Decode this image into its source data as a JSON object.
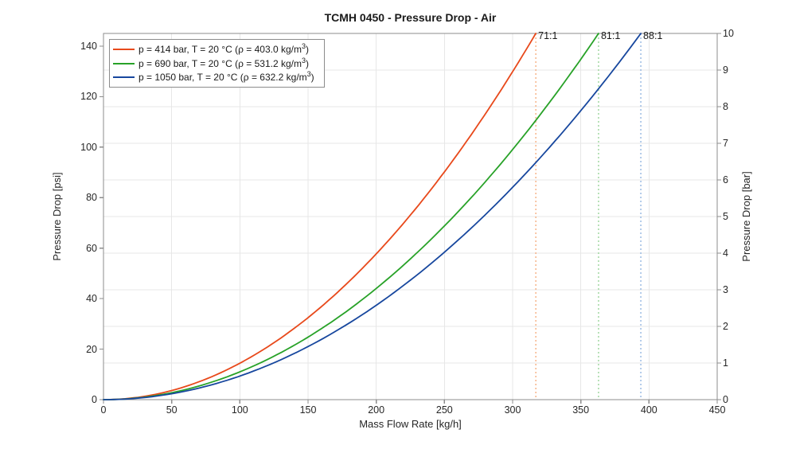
{
  "colors": {
    "axis": "#8c8c8c",
    "grid": "#e7e7e7",
    "tick_label": "#262626",
    "background": "#ffffff"
  },
  "chart_data": {
    "type": "line",
    "title": "TCMH 0450 - Pressure Drop - Air",
    "xlabel": "Mass Flow Rate [kg/h]",
    "ylabel_left": "Pressure Drop [psi]",
    "ylabel_right": "Pressure Drop [bar]",
    "x_range": [
      0,
      450
    ],
    "y_left_range_psi": [
      0,
      145.04
    ],
    "y_right_range_bar": [
      0,
      10
    ],
    "x_ticks": [
      0,
      50,
      100,
      150,
      200,
      250,
      300,
      350,
      400,
      450
    ],
    "y_left_ticks": [
      0,
      20,
      40,
      60,
      80,
      100,
      120,
      140
    ],
    "y_right_ticks": [
      0,
      1,
      2,
      3,
      4,
      5,
      6,
      7,
      8,
      9,
      10
    ],
    "grid": true,
    "legend_position": "top-left",
    "curve_model": "dp_bar = dp_max_bar * (m / m_max_kgh)^2",
    "curve_exponent": 2,
    "series": [
      {
        "name": "p = 414 bar, T = 20 °C (ρ = 403.0 kg/m³)",
        "legend_pre": "p = 414 bar, T = 20 °C (ρ = 403.0 kg/m",
        "legend_sup": "3",
        "legend_post": ")",
        "pressure_bar": 414,
        "temperature_c": 20,
        "rho_kg_m3": 403.0,
        "color": "#E8491B",
        "guide_color": "#F5A878",
        "m_max_kgh": 317,
        "dp_max_bar": 10,
        "ratio_label": "71:1",
        "points_kgh_bar": [
          [
            0,
            0
          ],
          [
            50,
            0.25
          ],
          [
            100,
            1.0
          ],
          [
            150,
            2.24
          ],
          [
            200,
            3.98
          ],
          [
            250,
            6.22
          ],
          [
            300,
            8.96
          ],
          [
            317,
            10
          ]
        ]
      },
      {
        "name": "p = 690 bar, T = 20 °C (ρ = 531.2 kg/m³)",
        "legend_pre": "p = 690 bar, T = 20 °C (ρ = 531.2 kg/m",
        "legend_sup": "3",
        "legend_post": ")",
        "pressure_bar": 690,
        "temperature_c": 20,
        "rho_kg_m3": 531.2,
        "color": "#28A228",
        "guide_color": "#93D293",
        "m_max_kgh": 363,
        "dp_max_bar": 10,
        "ratio_label": "81:1",
        "points_kgh_bar": [
          [
            0,
            0
          ],
          [
            50,
            0.19
          ],
          [
            100,
            0.76
          ],
          [
            150,
            1.71
          ],
          [
            200,
            3.03
          ],
          [
            250,
            4.74
          ],
          [
            300,
            6.83
          ],
          [
            350,
            9.3
          ],
          [
            363,
            10
          ]
        ]
      },
      {
        "name": "p = 1050 bar, T = 20 °C (ρ = 632.2 kg/m³)",
        "legend_pre": "p = 1050 bar, T = 20 °C (ρ = 632.2 kg/m",
        "legend_sup": "3",
        "legend_post": ")",
        "pressure_bar": 1050,
        "temperature_c": 20,
        "rho_kg_m3": 632.2,
        "color": "#17479E",
        "guide_color": "#8CB0DF",
        "m_max_kgh": 394,
        "dp_max_bar": 10,
        "ratio_label": "88:1",
        "points_kgh_bar": [
          [
            0,
            0
          ],
          [
            50,
            0.16
          ],
          [
            100,
            0.64
          ],
          [
            150,
            1.45
          ],
          [
            200,
            2.58
          ],
          [
            250,
            4.03
          ],
          [
            300,
            5.8
          ],
          [
            350,
            7.89
          ],
          [
            394,
            10
          ]
        ]
      }
    ]
  }
}
